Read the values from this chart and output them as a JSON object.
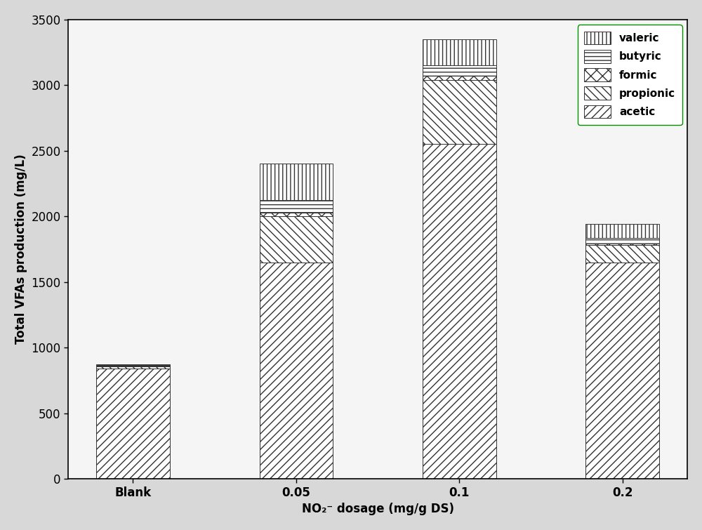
{
  "categories": [
    "Blank",
    "0.05",
    "0.1",
    "0.2"
  ],
  "acetic": [
    840,
    1650,
    2550,
    1650
  ],
  "propionic": [
    15,
    350,
    490,
    130
  ],
  "formic": [
    5,
    30,
    30,
    15
  ],
  "butyric": [
    5,
    95,
    80,
    40
  ],
  "valeric": [
    10,
    275,
    200,
    110
  ],
  "ylabel": "Total VFAs production (mg/L)",
  "xlabel": "NO₂⁻ dosage (mg/g DS)",
  "ylim": [
    0,
    3500
  ],
  "yticks": [
    0,
    500,
    1000,
    1500,
    2000,
    2500,
    3000,
    3500
  ],
  "bar_width": 0.45,
  "legend_labels": [
    "valeric",
    "butyric",
    "formic",
    "propionic",
    "acetic"
  ],
  "figure_bg": "#d8d8d8",
  "plot_bg": "#f5f5f5"
}
